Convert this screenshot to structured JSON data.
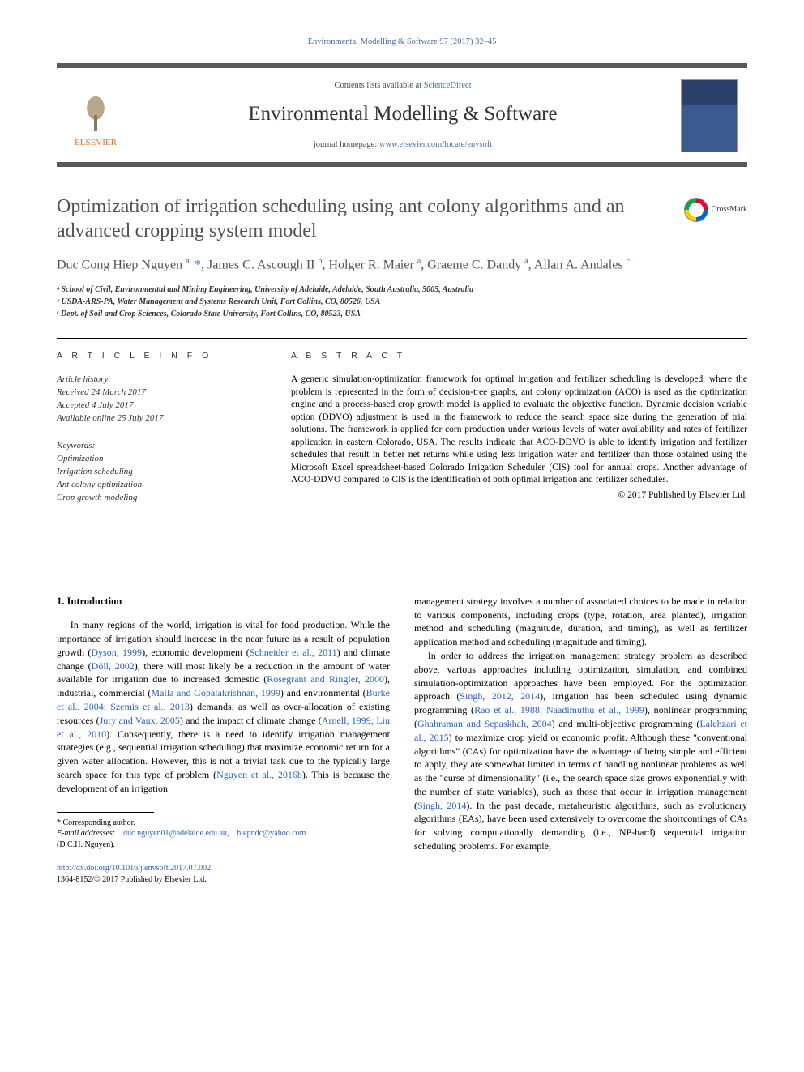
{
  "header_citation": "Environmental Modelling & Software 97 (2017) 32–45",
  "banner": {
    "contents_prefix": "Contents lists available at ",
    "contents_link": "ScienceDirect",
    "journal_title": "Environmental Modelling & Software",
    "homepage_prefix": "journal homepage: ",
    "homepage_link": "www.elsevier.com/locate/envsoft",
    "publisher": "ELSEVIER"
  },
  "crossmark_label": "CrossMark",
  "title": "Optimization of irrigation scheduling using ant colony algorithms and an advanced cropping system model",
  "authors_html": "Duc Cong Hiep Nguyen <sup>a,</sup> <span class='star'>*</span>, James C. Ascough II <sup>b</sup>, Holger R. Maier <sup>a</sup>, Graeme C. Dandy <sup>a</sup>, Allan A. Andales <sup>c</sup>",
  "affiliations": [
    "ᵃ School of Civil, Environmental and Mining Engineering, University of Adelaide, Adelaide, South Australia, 5005, Australia",
    "ᵇ USDA-ARS-PA, Water Management and Systems Research Unit, Fort Collins, CO, 80526, USA",
    "ᶜ Dept. of Soil and Crop Sciences, Colorado State University, Fort Collins, CO, 80523, USA"
  ],
  "article_info_label": "A R T I C L E   I N F O",
  "abstract_label": "A B S T R A C T",
  "history": {
    "label": "Article history:",
    "received": "Received 24 March 2017",
    "accepted": "Accepted 4 July 2017",
    "online": "Available online 25 July 2017"
  },
  "keywords_label": "Keywords:",
  "keywords": [
    "Optimization",
    "Irrigation scheduling",
    "Ant colony optimization",
    "Crop growth modeling"
  ],
  "abstract": "A generic simulation-optimization framework for optimal irrigation and fertilizer scheduling is developed, where the problem is represented in the form of decision-tree graphs, ant colony optimization (ACO) is used as the optimization engine and a process-based crop growth model is applied to evaluate the objective function. Dynamic decision variable option (DDVO) adjustment is used in the framework to reduce the search space size during the generation of trial solutions. The framework is applied for corn production under various levels of water availability and rates of fertilizer application in eastern Colorado, USA. The results indicate that ACO-DDVO is able to identify irrigation and fertilizer schedules that result in better net returns while using less irrigation water and fertilizer than those obtained using the Microsoft Excel spreadsheet-based Colorado Irrigation Scheduler (CIS) tool for annual crops. Another advantage of ACO-DDVO compared to CIS is the identification of both optimal irrigation and fertilizer schedules.",
  "copyright": "© 2017 Published by Elsevier Ltd.",
  "section1_heading": "1. Introduction",
  "para1": "In many regions of the world, irrigation is vital for food production. While the importance of irrigation should increase in the near future as a result of population growth (<span class='cite'>Dyson, 1999</span>), economic development (<span class='cite'>Schneider et al., 2011</span>) and climate change (<span class='cite'>Döll, 2002</span>), there will most likely be a reduction in the amount of water available for irrigation due to increased domestic (<span class='cite'>Rosegrant and Ringler, 2000</span>), industrial, commercial (<span class='cite'>Malla and Gopalakrishnan, 1999</span>) and environmental (<span class='cite'>Burke et al., 2004; Szemis et al., 2013</span>) demands, as well as over-allocation of existing resources (<span class='cite'>Jury and Vaux, 2005</span>) and the impact of climate change (<span class='cite'>Arnell, 1999; Liu et al., 2010</span>). Consequently, there is a need to identify irrigation management strategies (e.g., sequential irrigation scheduling) that maximize economic return for a given water allocation. However, this is not a trivial task due to the typically large search space for this type of problem (<span class='cite'>Nguyen et al., 2016b</span>). This is because the development of an irrigation",
  "para2": "management strategy involves a number of associated choices to be made in relation to various components, including crops (type, rotation, area planted), irrigation method and scheduling (magnitude, duration, and timing), as well as fertilizer application method and scheduling (magnitude and timing).",
  "para3": "In order to address the irrigation management strategy problem as described above, various approaches including optimization, simulation, and combined simulation-optimization approaches have been employed. For the optimization approach (<span class='cite'>Singh, 2012, 2014</span>), irrigation has been scheduled using dynamic programming (<span class='cite'>Rao et al., 1988; Naadimuthu et al., 1999</span>), nonlinear programming (<span class='cite'>Ghahraman and Sepaskhah, 2004</span>) and multi-objective programming (<span class='cite'>Lalehzari et al., 2015</span>) to maximize crop yield or economic profit. Although these \"conventional algorithms\" (CAs) for optimization have the advantage of being simple and efficient to apply, they are somewhat limited in terms of handling nonlinear problems as well as the \"curse of dimensionality\" (i.e., the search space size grows exponentially with the number of state variables), such as those that occur in irrigation management (<span class='cite'>Singh, 2014</span>). In the past decade, metaheuristic algorithms, such as evolutionary algorithms (EAs), have been used extensively to overcome the shortcomings of CAs for solving computationally demanding (i.e., NP-hard) sequential irrigation scheduling problems. For example,",
  "footnotes": {
    "corr": "* Corresponding author.",
    "email_label": "E-mail addresses:",
    "email1": "duc.nguyen01@adelaide.edu.au",
    "email2": "hiepndc@yahoo.com",
    "email_tail": "(D.C.H. Nguyen)."
  },
  "doi": {
    "link": "http://dx.doi.org/10.1016/j.envsoft.2017.07.002",
    "issn_line": "1364-8152/© 2017 Published by Elsevier Ltd."
  },
  "colors": {
    "link": "#2962c4",
    "header_link": "#4b6ea8",
    "rule": "#58595b",
    "orange": "#e9711c",
    "title_gray": "#525252"
  }
}
